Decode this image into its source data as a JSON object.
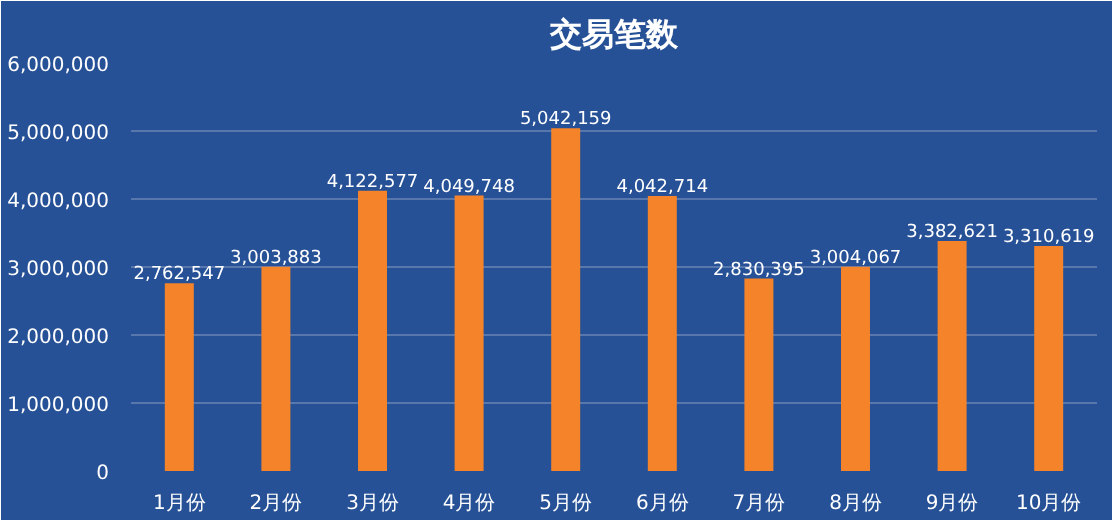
{
  "chart_data": {
    "type": "bar",
    "title": "交易笔数",
    "categories": [
      "1月份",
      "2月份",
      "3月份",
      "4月份",
      "5月份",
      "6月份",
      "7月份",
      "8月份",
      "9月份",
      "10月份"
    ],
    "values": [
      2762547,
      3003883,
      4122577,
      4049748,
      5042159,
      4042714,
      2830395,
      3004067,
      3382621,
      3310619
    ],
    "color": "#f5832a",
    "ylim": [
      0,
      6000000
    ],
    "yticks": [
      {
        "value": 0,
        "label": "0"
      },
      {
        "value": 1000000,
        "label": "1,000,000"
      },
      {
        "value": 2000000,
        "label": "2,000,000"
      },
      {
        "value": 3000000,
        "label": "3,000,000"
      },
      {
        "value": 4000000,
        "label": "4,000,000"
      },
      {
        "value": 5000000,
        "label": "5,000,000"
      },
      {
        "value": 6000000,
        "label": "6,000,000"
      }
    ],
    "value_labels": [
      "2,762,547",
      "3,003,883",
      "4,122,577",
      "4,049,748",
      "5,042,159",
      "4,042,714",
      "2,830,395",
      "3,004,067",
      "3,382,621",
      "3,310,619"
    ],
    "grid": "y"
  }
}
